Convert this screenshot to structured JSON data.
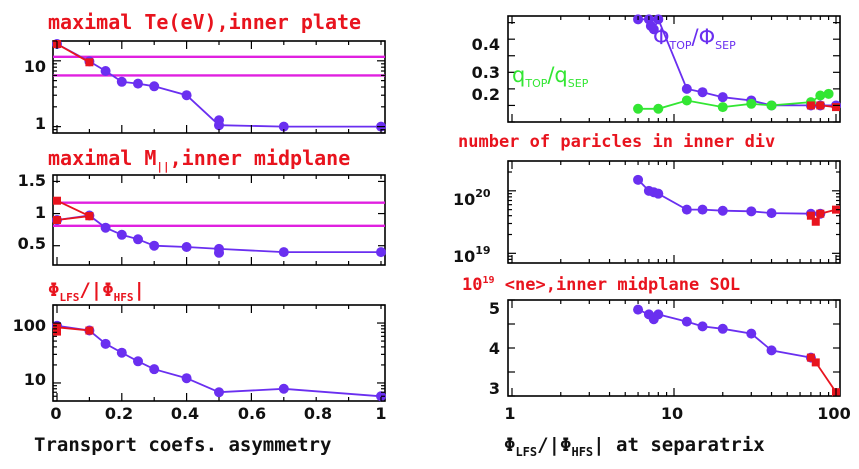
{
  "colors": {
    "purple": "#6a2ff0",
    "red": "#e8141e",
    "magenta": "#e020e0",
    "green": "#33e633"
  },
  "left": {
    "xlabel": "Transport coefs. asymmetry",
    "xticks": [
      "0",
      "0.2",
      "0.4",
      "0.6",
      "0.8",
      "1"
    ]
  },
  "right": {
    "xlabel_sym": "Φ",
    "xlabel_sub1": "LFS",
    "xlabel_mid": "/|Φ",
    "xlabel_sub2": "HFS",
    "xlabel_tail": "| at separatrix",
    "xticks": [
      "1",
      "10",
      "100"
    ]
  },
  "panels": {
    "p1": {
      "title": "maximal Te(eV),inner plate",
      "yticks": [
        "10",
        "1"
      ]
    },
    "p2": {
      "title_a": "maximal M",
      "title_sub": "||",
      "title_b": ",inner midplane",
      "yticks": [
        "1.5",
        "1",
        "0.5"
      ]
    },
    "p3": {
      "title_a": "Φ",
      "title_sub1": "LFS",
      "title_b": "/|Φ",
      "title_sub2": "HFS",
      "title_c": "|",
      "yticks": [
        "100",
        "10"
      ]
    },
    "p4": {
      "yticks": [
        "0.4",
        "0.3",
        "0.2"
      ],
      "label_phi": "Φ",
      "label_phi_sub1": "TOP",
      "label_phi_mid": "/Φ",
      "label_phi_sub2": "SEP",
      "label_q": "q",
      "label_q_sub1": "TOP",
      "label_q_mid": "/q",
      "label_q_sub2": "SEP"
    },
    "p5": {
      "title": "number of paricles in inner div",
      "ytick_a_base": "10",
      "ytick_a_exp": "20",
      "ytick_b_base": "10",
      "ytick_b_exp": "19"
    },
    "p6": {
      "title_base": "10",
      "title_exp": "19",
      "title_rest": " <ne>,inner midplane SOL",
      "yticks": [
        "5",
        "4",
        "3"
      ]
    }
  },
  "chart_data": [
    {
      "type": "line",
      "scale": "log-y",
      "title": "maximal Te(eV),inner plate",
      "xlabel": "Transport coefs. asymmetry",
      "xlim": [
        0,
        1
      ],
      "ylim": [
        0.8,
        20
      ],
      "series": [
        {
          "color": "purple",
          "x": [
            0,
            0.1,
            0.15,
            0.2,
            0.25,
            0.3,
            0.4,
            0.5,
            0.7,
            1.0
          ],
          "y": [
            18,
            9.8,
            7.0,
            4.8,
            4.5,
            4.1,
            3.0,
            1.05,
            1.0,
            1.0
          ]
        },
        {
          "color": "red",
          "x": [
            0,
            0.1
          ],
          "y": [
            18,
            9.5
          ]
        }
      ],
      "hlines": [
        11.5,
        6.0
      ],
      "extra_points": [
        {
          "x": 0.5,
          "y": 1.25,
          "color": "purple"
        }
      ]
    },
    {
      "type": "line",
      "title": "maximal M||,inner midplane",
      "xlabel": "Transport coefs. asymmetry",
      "xlim": [
        0,
        1
      ],
      "ylim": [
        0.2,
        1.6
      ],
      "series": [
        {
          "color": "purple",
          "x": [
            0,
            0.1,
            0.15,
            0.2,
            0.25,
            0.3,
            0.4,
            0.5,
            0.7,
            1.0
          ],
          "y": [
            0.9,
            0.97,
            0.78,
            0.67,
            0.6,
            0.5,
            0.48,
            0.45,
            0.4,
            0.4
          ]
        },
        {
          "color": "red",
          "x": [
            0,
            0.1
          ],
          "y": [
            1.2,
            0.96
          ]
        },
        {
          "color": "red",
          "x": [
            0,
            0.1
          ],
          "y": [
            0.9,
            0.96
          ]
        }
      ],
      "hlines": [
        1.17,
        0.81
      ],
      "extra_points": [
        {
          "x": 0.5,
          "y": 0.39,
          "color": "purple"
        }
      ]
    },
    {
      "type": "line",
      "scale": "log-y",
      "title": "ΦLFS/|ΦHFS|",
      "xlabel": "Transport coefs. asymmetry",
      "xlim": [
        0,
        1
      ],
      "ylim": [
        5,
        200
      ],
      "series": [
        {
          "color": "purple",
          "x": [
            0,
            0.1,
            0.15,
            0.2,
            0.25,
            0.3,
            0.4,
            0.5,
            0.7,
            1.0
          ],
          "y": [
            90,
            75,
            45,
            32,
            23,
            17,
            12,
            7,
            8,
            6
          ]
        },
        {
          "color": "red",
          "x": [
            0,
            0.1
          ],
          "y": [
            85,
            75
          ]
        }
      ],
      "extra_points": [
        {
          "x": 0,
          "y": 72,
          "color": "red"
        }
      ]
    },
    {
      "type": "line",
      "scale": "log-x",
      "xlabel": "ΦLFS/|ΦHFS| at separatrix",
      "xlim": [
        1,
        100
      ],
      "ylim": [
        0.15,
        0.47
      ],
      "series": [
        {
          "name": "ΦTOP/ΦSEP",
          "color": "purple",
          "x": [
            6,
            7,
            7.2,
            7.5,
            8,
            12,
            15,
            20,
            30,
            40,
            70,
            80,
            100
          ],
          "y": [
            0.46,
            0.46,
            0.44,
            0.43,
            0.46,
            0.25,
            0.24,
            0.225,
            0.215,
            0.2,
            0.2,
            0.2,
            0.2
          ]
        },
        {
          "name": "qTOP/qSEP",
          "color": "green",
          "x": [
            6,
            8,
            12,
            20,
            30,
            40,
            70,
            80,
            90
          ],
          "y": [
            0.19,
            0.19,
            0.215,
            0.195,
            0.205,
            0.2,
            0.21,
            0.23,
            0.235
          ]
        },
        {
          "color": "red",
          "x": [
            70,
            80,
            100
          ],
          "y": [
            0.2,
            0.2,
            0.195
          ]
        }
      ]
    },
    {
      "type": "line",
      "scale": "log-log",
      "title": "number of paricles in inner div",
      "xlabel": "ΦLFS/|ΦHFS| at separatrix",
      "xlim": [
        1,
        100
      ],
      "ylim": [
        7e+18,
        3e+20
      ],
      "series": [
        {
          "color": "purple",
          "x": [
            6,
            7,
            7.5,
            8,
            12,
            15,
            20,
            30,
            40,
            70,
            80
          ],
          "y": [
            1.5e+20,
            1e+20,
            9.5e+19,
            9e+19,
            5e+19,
            5e+19,
            4.8e+19,
            4.7e+19,
            4.4e+19,
            4.3e+19,
            4.3e+19
          ]
        },
        {
          "color": "red",
          "x": [
            70,
            75,
            80,
            100
          ],
          "y": [
            4e+19,
            3.2e+19,
            4.3e+19,
            5e+19
          ]
        }
      ]
    },
    {
      "type": "line",
      "scale": "log-x",
      "title": "10^19 <ne>,inner midplane SOL",
      "xlabel": "ΦLFS/|ΦHFS| at separatrix",
      "xlim": [
        1,
        100
      ],
      "ylim": [
        3,
        5
      ],
      "series": [
        {
          "color": "purple",
          "x": [
            6,
            7,
            7.5,
            8,
            12,
            15,
            20,
            30,
            40,
            70
          ],
          "y": [
            4.8,
            4.7,
            4.6,
            4.7,
            4.55,
            4.45,
            4.4,
            4.3,
            3.95,
            3.8
          ]
        },
        {
          "color": "red",
          "x": [
            70,
            75,
            100
          ],
          "y": [
            3.8,
            3.7,
            3.08
          ]
        }
      ]
    }
  ]
}
